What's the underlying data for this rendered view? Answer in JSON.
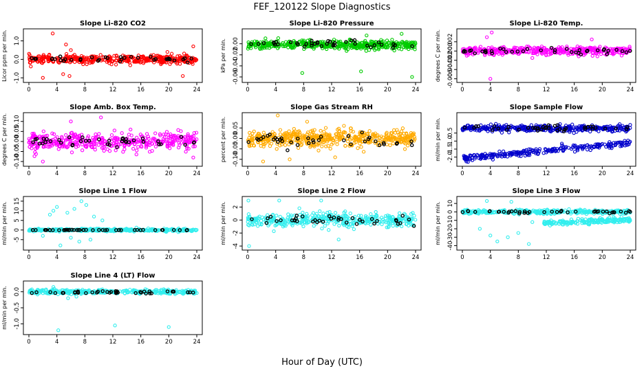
{
  "figure": {
    "title": "FEF_120122  Slope Diagnostics",
    "xlabel": "Hour of Day (UTC)"
  },
  "chart_data": [
    {
      "type": "scatter",
      "title": "Slope Li-820 CO2",
      "ylabel": "Licor ppm per min.",
      "xlim": [
        0,
        24
      ],
      "xticks": [
        0,
        4,
        8,
        12,
        16,
        20,
        24
      ],
      "ylim": [
        -1.1,
        1.5
      ],
      "yticks": [
        -1.0,
        0.0,
        1.0
      ],
      "ytick_labels": [
        "-1.0",
        "0.0",
        "1.0"
      ],
      "series": [
        {
          "color": "#ff0000",
          "center": 0.0,
          "spread": 0.2,
          "count": 400,
          "outliers": [
            [
              3.4,
              1.4
            ],
            [
              2.0,
              -1.0
            ],
            [
              4.9,
              -0.8
            ],
            [
              5.3,
              0.8
            ],
            [
              5.8,
              -0.9
            ],
            [
              22.0,
              -0.9
            ],
            [
              23.5,
              0.7
            ],
            [
              6.0,
              0.5
            ],
            [
              19.8,
              0.4
            ]
          ]
        },
        {
          "color": "#000000",
          "center": 0.0,
          "spread": 0.12,
          "count": 40,
          "outliers": []
        }
      ]
    },
    {
      "type": "scatter",
      "title": "Slope Li-820 Pressure",
      "ylabel": "kPa per min.",
      "xlim": [
        0,
        24
      ],
      "xticks": [
        0,
        4,
        8,
        12,
        16,
        20,
        24
      ],
      "ylim": [
        -0.065,
        0.022
      ],
      "yticks": [
        -0.06,
        -0.04,
        -0.02,
        0.0
      ],
      "ytick_labels": [
        "-0.06",
        "-0.04",
        "-0.02",
        "0.00"
      ],
      "series": [
        {
          "color": "#00cc00",
          "center": -0.002,
          "spread": 0.007,
          "count": 500,
          "outliers": [
            [
              7.8,
              -0.053
            ],
            [
              16.2,
              -0.05
            ],
            [
              23.5,
              -0.06
            ],
            [
              22.0,
              0.018
            ],
            [
              17.0,
              0.015
            ]
          ]
        },
        {
          "color": "#000000",
          "center": 0.0,
          "spread": 0.005,
          "count": 40,
          "outliers": []
        }
      ]
    },
    {
      "type": "scatter",
      "title": "Slope Li-820 Temp.",
      "ylabel": "degrees C per min.",
      "xlim": [
        0,
        24
      ],
      "xticks": [
        0,
        4,
        8,
        12,
        16,
        20,
        24
      ],
      "ylim": [
        -0.0062,
        0.0042
      ],
      "yticks": [
        -0.006,
        -0.004,
        -0.002,
        0.0,
        0.002
      ],
      "ytick_labels": [
        "-0.006",
        "-0.004",
        "-0.002",
        "0.000",
        "0.002"
      ],
      "series": [
        {
          "color": "#ff00ff",
          "center": 0.0,
          "spread": 0.0008,
          "count": 400,
          "outliers": [
            [
              4.0,
              -0.006
            ],
            [
              4.2,
              0.004
            ],
            [
              3.5,
              0.003
            ],
            [
              18.5,
              0.0025
            ],
            [
              10.0,
              -0.0015
            ]
          ]
        },
        {
          "color": "#000000",
          "center": 0.0,
          "spread": 0.0006,
          "count": 40,
          "outliers": []
        }
      ]
    },
    {
      "type": "scatter",
      "title": "Slope Amb. Box Temp.",
      "ylabel": "degrees C per min.",
      "xlim": [
        0,
        24
      ],
      "xticks": [
        0,
        4,
        8,
        12,
        16,
        20,
        24
      ],
      "ylim": [
        -0.11,
        0.13
      ],
      "yticks": [
        -0.1,
        -0.05,
        0.0,
        0.05,
        0.1
      ],
      "ytick_labels": [
        "-0.10",
        "-0.05",
        "0.00",
        "0.05",
        "0.10"
      ],
      "series": [
        {
          "color": "#ff00ff",
          "center": 0.0,
          "spread": 0.04,
          "count": 420,
          "outliers": [
            [
              10.3,
              0.12
            ],
            [
              2.0,
              -0.1
            ],
            [
              6.0,
              0.1
            ],
            [
              23.5,
              -0.08
            ]
          ]
        },
        {
          "color": "#000000",
          "center": 0.0,
          "spread": 0.025,
          "count": 40,
          "outliers": []
        }
      ]
    },
    {
      "type": "scatter",
      "title": "Slope Gas Stream RH",
      "ylabel": "percent per min.",
      "xlim": [
        0,
        24
      ],
      "xticks": [
        0,
        4,
        8,
        12,
        16,
        20,
        24
      ],
      "ylim": [
        -0.12,
        0.11
      ],
      "yticks": [
        -0.1,
        -0.05,
        0.0,
        0.05
      ],
      "ytick_labels": [
        "-0.10",
        "-0.05",
        "0.00",
        "0.05"
      ],
      "series": [
        {
          "color": "#ffaa00",
          "center": 0.0,
          "spread": 0.035,
          "count": 500,
          "outliers": [
            [
              4.3,
              0.11
            ],
            [
              2.2,
              -0.11
            ],
            [
              12.5,
              -0.09
            ],
            [
              8.5,
              0.08
            ],
            [
              6.0,
              -0.1
            ]
          ]
        },
        {
          "color": "#000000",
          "center": -0.01,
          "spread": 0.025,
          "count": 40,
          "outliers": []
        }
      ]
    },
    {
      "type": "scatter",
      "title": "Slope Sample Flow",
      "ylabel": "ml/min per min.",
      "xlim": [
        0,
        24
      ],
      "xticks": [
        0,
        4,
        8,
        12,
        16,
        20,
        24
      ],
      "ylim": [
        -2.4,
        0.6
      ],
      "yticks": [
        -2.0,
        -1.5,
        -1.0,
        -0.5
      ],
      "ytick_labels": [
        "-2.0",
        "-1.5",
        "-1.0",
        "-0.5"
      ],
      "series": [
        {
          "color": "#0000cc",
          "center": -0.2,
          "spread": 0.18,
          "count": 380,
          "outliers": []
        },
        {
          "color": "#0000cc",
          "center": -1.6,
          "spread": 0.18,
          "count": 260,
          "slope": 0.04,
          "outliers": [
            [
              0.3,
              -2.1
            ],
            [
              0.8,
              -2.3
            ]
          ]
        },
        {
          "color": "#000000",
          "center": -0.2,
          "spread": 0.15,
          "count": 40,
          "outliers": []
        }
      ]
    },
    {
      "type": "scatter",
      "title": "Slope Line 1 Flow",
      "ylabel": "ml/min per min.",
      "xlim": [
        0,
        24
      ],
      "xticks": [
        0,
        4,
        8,
        12,
        16,
        20,
        24
      ],
      "ylim": [
        -9,
        16
      ],
      "yticks": [
        -5,
        0,
        5,
        10,
        15
      ],
      "ytick_labels": [
        "-5",
        "0",
        "5",
        "10",
        "15"
      ],
      "series": [
        {
          "color": "#33eeee",
          "center": 0.0,
          "spread": 0.6,
          "count": 420,
          "outliers": [
            [
              7.5,
              15
            ],
            [
              8.2,
              13
            ],
            [
              4.0,
              12
            ],
            [
              5.5,
              9
            ],
            [
              3.0,
              8
            ],
            [
              9.3,
              7
            ],
            [
              6.0,
              -4
            ],
            [
              7.2,
              -6
            ],
            [
              4.5,
              -8
            ],
            [
              10.5,
              5
            ],
            [
              2.0,
              -3
            ],
            [
              8.8,
              -5
            ],
            [
              3.5,
              10
            ],
            [
              6.5,
              11
            ]
          ]
        },
        {
          "color": "#000000",
          "center": 0.0,
          "spread": 0.1,
          "count": 45,
          "outliers": []
        }
      ]
    },
    {
      "type": "scatter",
      "title": "Slope Line 2 Flow",
      "ylabel": "ml/min per min.",
      "xlim": [
        0,
        24
      ],
      "xticks": [
        0,
        4,
        8,
        12,
        16,
        20,
        24
      ],
      "ylim": [
        -4.2,
        3.2
      ],
      "yticks": [
        -4,
        -2,
        0,
        2
      ],
      "ytick_labels": [
        "-4",
        "-2",
        "0",
        "2"
      ],
      "series": [
        {
          "color": "#33eeee",
          "center": 0.0,
          "spread": 1.0,
          "count": 420,
          "outliers": [
            [
              0.1,
              3.0
            ],
            [
              4.5,
              3.0
            ],
            [
              0.2,
              -4.0
            ],
            [
              10.5,
              3.0
            ],
            [
              13.0,
              -3.0
            ]
          ]
        },
        {
          "color": "#000000",
          "center": 0.1,
          "spread": 0.8,
          "count": 40,
          "outliers": []
        }
      ]
    },
    {
      "type": "scatter",
      "title": "Slope Line 3 Flow",
      "ylabel": "ml/min per min.",
      "xlim": [
        0,
        24
      ],
      "xticks": [
        0,
        4,
        8,
        12,
        16,
        20,
        24
      ],
      "ylim": [
        -42,
        15
      ],
      "yticks": [
        -40,
        -30,
        -20,
        -10,
        0,
        10
      ],
      "ytick_labels": [
        "-40",
        "-30",
        "-20",
        "-10",
        "0",
        "10"
      ],
      "series": [
        {
          "color": "#33eeee",
          "center": 0.0,
          "spread": 2.0,
          "count": 380,
          "outliers": [
            [
              3.5,
              13
            ],
            [
              7.0,
              12
            ],
            [
              6.5,
              -30
            ],
            [
              5.0,
              -35
            ],
            [
              8.0,
              -25
            ],
            [
              9.5,
              -38
            ],
            [
              4.0,
              -28
            ],
            [
              2.5,
              -20
            ],
            [
              10.0,
              -12
            ]
          ]
        },
        {
          "color": "#33eeee",
          "center": -13,
          "spread": 2.5,
          "count": 200,
          "slope": 0.3,
          "xmin": 11.5,
          "outliers": []
        },
        {
          "color": "#000000",
          "center": 0.0,
          "spread": 1.5,
          "count": 40,
          "outliers": []
        }
      ]
    },
    {
      "type": "scatter",
      "title": "Slope Line 4 (LT) Flow",
      "ylabel": "ml/min per min.",
      "xlim": [
        0,
        24
      ],
      "xticks": [
        0,
        4,
        8,
        12,
        16,
        20,
        24
      ],
      "ylim": [
        -1.25,
        0.25
      ],
      "yticks": [
        -1.0,
        -0.5,
        0.0
      ],
      "ytick_labels": [
        "-1.0",
        "-0.5",
        "0.0"
      ],
      "series": [
        {
          "color": "#33eeee",
          "center": 0.0,
          "spread": 0.06,
          "count": 380,
          "outliers": [
            [
              4.2,
              -1.2
            ],
            [
              12.3,
              -1.05
            ],
            [
              20.0,
              -1.1
            ],
            [
              3.5,
              0.15
            ],
            [
              5.6,
              -0.2
            ],
            [
              6.8,
              -0.15
            ]
          ]
        },
        {
          "color": "#000000",
          "center": -0.02,
          "spread": 0.04,
          "count": 40,
          "outliers": []
        }
      ]
    }
  ]
}
